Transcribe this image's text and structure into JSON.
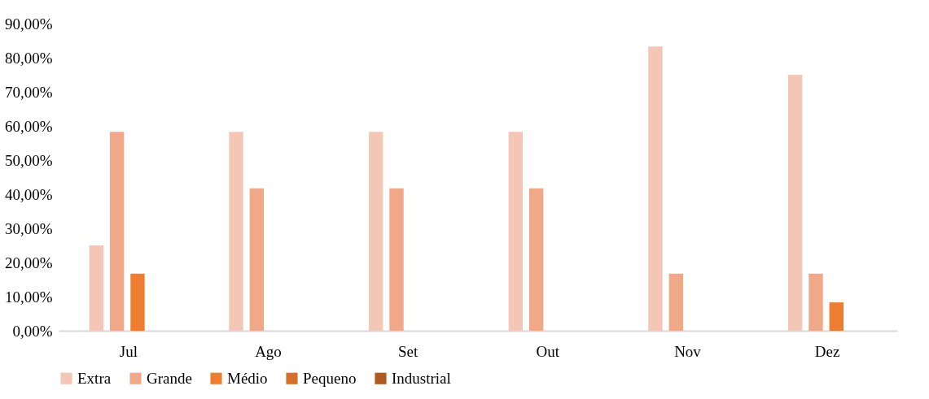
{
  "chart_data": {
    "type": "bar",
    "categories": [
      "Jul",
      "Ago",
      "Set",
      "Out",
      "Nov",
      "Dez"
    ],
    "series": [
      {
        "name": "Extra",
        "color": "#f4c6b5",
        "values": [
          25,
          58.3,
          58.3,
          58.3,
          83.3,
          75
        ]
      },
      {
        "name": "Grande",
        "color": "#f0a889",
        "values": [
          58.3,
          41.7,
          41.7,
          41.7,
          16.7,
          16.7
        ]
      },
      {
        "name": "Médio",
        "color": "#ed7d31",
        "values": [
          16.7,
          0,
          0,
          0,
          0,
          8.3
        ]
      },
      {
        "name": "Pequeno",
        "color": "#d2702c",
        "values": [
          0,
          0,
          0,
          0,
          0,
          0
        ]
      },
      {
        "name": "Industrial",
        "color": "#ae5a21",
        "values": [
          0,
          0,
          0,
          0,
          0,
          0
        ]
      }
    ],
    "ylim": [
      0,
      90
    ],
    "yticks": [
      {
        "value": 0,
        "label": "0,00%"
      },
      {
        "value": 10,
        "label": "10,00%"
      },
      {
        "value": 20,
        "label": "20,00%"
      },
      {
        "value": 30,
        "label": "30,00%"
      },
      {
        "value": 40,
        "label": "40,00%"
      },
      {
        "value": 50,
        "label": "50,00%"
      },
      {
        "value": 60,
        "label": "60,00%"
      },
      {
        "value": 70,
        "label": "70,00%"
      },
      {
        "value": 80,
        "label": "80,00%"
      },
      {
        "value": 90,
        "label": "90,00%"
      }
    ],
    "grid": false,
    "legend": "bottom"
  }
}
